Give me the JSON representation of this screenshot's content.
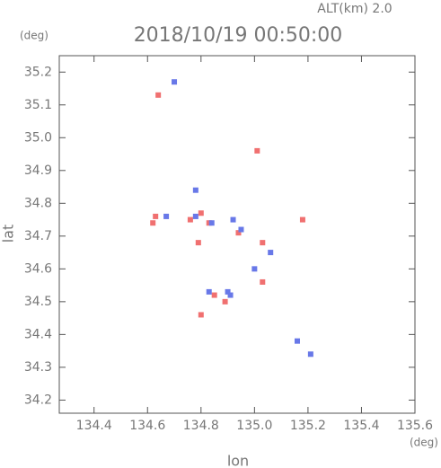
{
  "chart_data": {
    "type": "scatter",
    "title": "2018/10/19 00:50:00",
    "subtitle": "ALT(km) 2.0",
    "y_unit": "(deg)",
    "x_unit": "(deg)",
    "xlabel": "lon",
    "ylabel": "lat",
    "xlim": [
      134.27,
      135.6
    ],
    "ylim": [
      34.16,
      35.25
    ],
    "xticks": [
      134.4,
      134.6,
      134.8,
      {
        "value": 135,
        "label": "135.0"
      },
      135.2,
      135.4,
      135.6
    ],
    "yticks": [
      34.2,
      34.3,
      34.4,
      34.5,
      34.6,
      34.7,
      34.8,
      34.9,
      {
        "value": 35,
        "label": "35.0"
      },
      35.1,
      35.2
    ],
    "series": [
      {
        "color": "#f07070",
        "x": [
          134.62,
          134.63,
          134.76,
          134.8,
          134.83,
          134.79,
          134.94,
          135.03,
          135.03,
          134.89,
          134.85,
          134.8,
          134.64,
          135.01,
          135.18
        ],
        "y": [
          34.74,
          34.76,
          34.75,
          34.77,
          34.74,
          34.68,
          34.71,
          34.68,
          34.56,
          34.5,
          34.52,
          34.46,
          35.13,
          34.96,
          34.75
        ]
      },
      {
        "color": "#6878e8",
        "x": [
          134.67,
          134.7,
          134.78,
          134.78,
          134.84,
          134.92,
          134.95,
          135.0,
          135.06,
          134.9,
          134.91,
          134.83,
          135.16,
          135.21
        ],
        "y": [
          34.76,
          35.17,
          34.84,
          34.76,
          34.74,
          34.75,
          34.72,
          34.6,
          34.65,
          34.53,
          34.52,
          34.53,
          34.38,
          34.34
        ]
      }
    ]
  }
}
